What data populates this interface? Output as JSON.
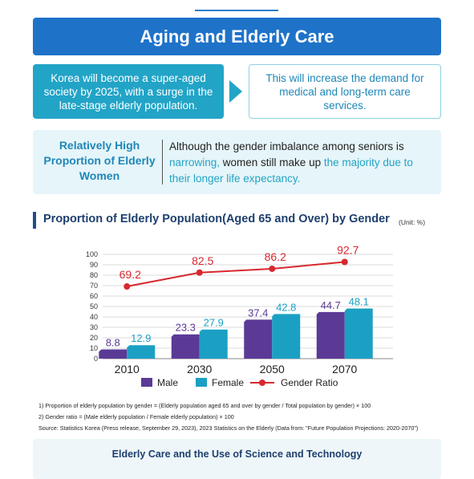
{
  "header": {
    "title": "Aging and Elderly Care"
  },
  "summary": {
    "left_text": "Korea will become a super-aged society by 2025, with a surge in the late-stage elderly population.",
    "right_text": "This will increase the demand for medical and long-term care services."
  },
  "highlight": {
    "label": "Relatively High Proportion of Elderly Women",
    "text_1": "Although the gender imbalance among seniors is ",
    "text_2": "narrowing,",
    "text_3": " women still make up ",
    "text_4": "the majority due to their longer life expectancy."
  },
  "section": {
    "title": "Proportion of Elderly Population(Aged 65 and Over) by Gender",
    "unit": "(Unit: %)"
  },
  "chart_data": {
    "type": "bar",
    "categories": [
      "2010",
      "2030",
      "2050",
      "2070"
    ],
    "series": [
      {
        "name": "Male",
        "type": "bar",
        "color": "#5b3a96",
        "values": [
          8.8,
          23.3,
          37.4,
          44.7
        ]
      },
      {
        "name": "Female",
        "type": "bar",
        "color": "#1ba0c4",
        "values": [
          12.9,
          27.9,
          42.8,
          48.1
        ]
      },
      {
        "name": "Gender Ratio",
        "type": "line",
        "color": "#d7282f",
        "values": [
          69.2,
          82.5,
          86.2,
          92.7
        ]
      }
    ],
    "ylim": [
      0,
      100
    ],
    "yticks": [
      0,
      10,
      20,
      30,
      40,
      50,
      60,
      70,
      80,
      90,
      100
    ],
    "grid": true,
    "legend": "bottom"
  },
  "footnotes": {
    "note1": "1) Proportion of elderly population by gender = (Elderly population aged 65 and over by gender / Total population by gender) × 100",
    "note2": "2) Gender ratio = (Male elderly population / Female elderly population) × 100",
    "source": "Source: Statistics Korea (Press release, September 29, 2023), 2023 Statistics on the Elderly (Data from: \"Future Population Projections: 2020-2070\")"
  },
  "bottom": {
    "title": "Elderly Care and the Use of Science and Technology"
  }
}
